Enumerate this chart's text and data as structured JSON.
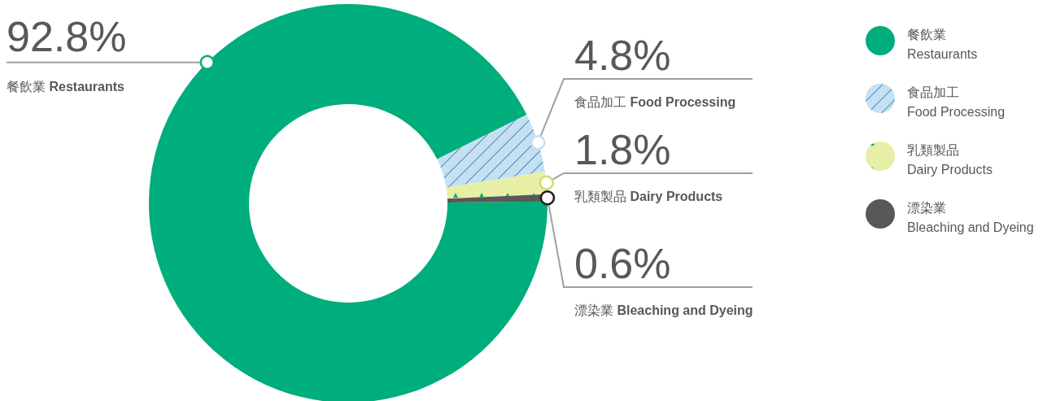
{
  "chart_data": {
    "type": "donut",
    "categories": [
      "餐飲業 Restaurants",
      "食品加工 Food Processing",
      "乳類製品 Dairy Products",
      "漂染業 Bleaching and Dyeing"
    ],
    "values": [
      92.8,
      4.8,
      1.8,
      0.6
    ],
    "value_labels": [
      "92.8%",
      "4.8%",
      "1.8%",
      "0.6%"
    ],
    "colors": [
      "#00ad7c",
      "#c5e0f3",
      "#e6efa5",
      "#595757"
    ],
    "legend": "top right"
  }
}
